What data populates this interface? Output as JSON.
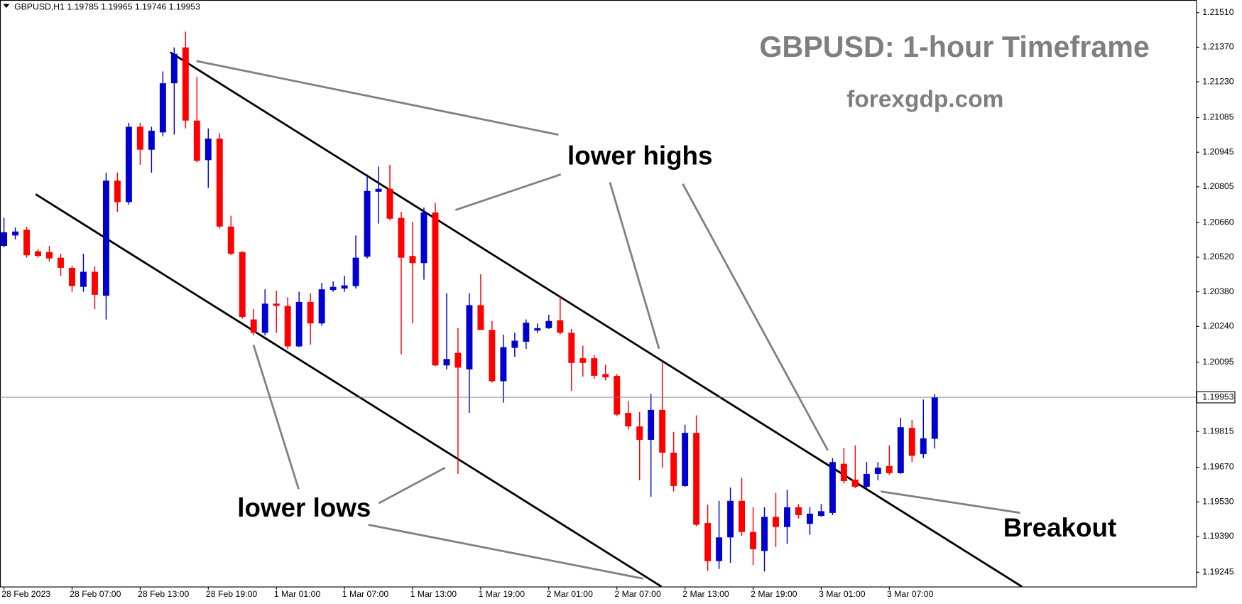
{
  "chart_data": {
    "type": "candlestick",
    "header": "GBPUSD,H1  1.19785 1.19965 1.19746 1.19953",
    "title": "GBPUSD: 1-hour Timeframe",
    "subtitle": "forexgdp.com",
    "annotations": [
      "lower highs",
      "lower lows",
      "Breakout"
    ],
    "up_color": "#0000d0",
    "down_color": "#ff0000",
    "last_price": 1.19953,
    "categories": [
      "28 Feb 2023",
      null,
      null,
      null,
      null,
      null,
      "28 Feb 07:00",
      null,
      null,
      null,
      null,
      null,
      "28 Feb 13:00",
      null,
      null,
      null,
      null,
      null,
      "28 Feb 19:00",
      null,
      null,
      null,
      null,
      null,
      "1 Mar 01:00",
      null,
      null,
      null,
      null,
      null,
      "1 Mar 07:00",
      null,
      null,
      null,
      null,
      null,
      "1 Mar 13:00",
      null,
      null,
      null,
      null,
      null,
      "1 Mar 19:00",
      null,
      null,
      null,
      null,
      null,
      "2 Mar 01:00",
      null,
      null,
      null,
      null,
      null,
      "2 Mar 07:00",
      null,
      null,
      null,
      null,
      null,
      "2 Mar 13:00",
      null,
      null,
      null,
      null,
      null,
      "2 Mar 19:00",
      null,
      null,
      null,
      null,
      null,
      "3 Mar 01:00",
      null,
      null,
      null,
      null,
      null,
      "3 Mar 07:00",
      null,
      null,
      null,
      null
    ],
    "open": [
      1.20566,
      1.20608,
      1.20631,
      1.20544,
      1.20541,
      1.20518,
      1.20477,
      1.204,
      1.20461,
      1.20364,
      1.2083,
      1.20743,
      1.21048,
      1.20955,
      1.21025,
      1.21224,
      1.21369,
      1.21073,
      1.20913,
      1.21,
      1.20644,
      1.20541,
      1.20268,
      1.20214,
      1.20332,
      1.20323,
      1.20159,
      1.20339,
      1.20252,
      1.20387,
      1.20393,
      1.20403,
      1.20522,
      1.20785,
      1.20797,
      1.20679,
      1.20525,
      1.20496,
      1.20701,
      1.20082,
      1.20133,
      1.20066,
      1.20326,
      1.20226,
      1.20018,
      1.20153,
      1.20178,
      1.20223,
      1.20233,
      1.20265,
      1.20214,
      1.20111,
      1.20111,
      1.20047,
      1.2004,
      1.1989,
      1.19835,
      1.19781,
      1.19902,
      1.19729,
      1.19594,
      1.19809,
      1.19444,
      1.1929,
      1.19386,
      1.19534,
      1.19408,
      1.19331,
      1.19469,
      1.19428,
      1.19508,
      1.19441,
      1.19473,
      1.19485,
      1.19684,
      1.1962,
      1.19591,
      1.19643,
      1.19675,
      1.19646,
      1.19829,
      1.19723,
      1.19785
    ],
    "high": [
      1.20679,
      1.2064,
      1.20643,
      1.20554,
      1.20566,
      1.20534,
      1.20486,
      1.20534,
      1.20483,
      1.20862,
      1.20862,
      1.21064,
      1.21064,
      1.21048,
      1.21272,
      1.21369,
      1.21433,
      1.2125,
      1.21041,
      1.21022,
      1.20688,
      1.20544,
      1.2031,
      1.2039,
      1.20384,
      1.20358,
      1.2038,
      1.20374,
      1.20416,
      1.20422,
      1.20445,
      1.20608,
      1.20855,
      1.20887,
      1.20894,
      1.20704,
      1.20663,
      1.20721,
      1.2074,
      1.20374,
      1.20233,
      1.20374,
      1.20451,
      1.20262,
      1.20207,
      1.20214,
      1.20268,
      1.20252,
      1.20287,
      1.20361,
      1.2023,
      1.20162,
      1.20124,
      1.20085,
      1.20047,
      1.19938,
      1.19893,
      1.19967,
      1.20101,
      1.19813,
      1.19842,
      1.1988,
      1.19518,
      1.19534,
      1.19588,
      1.19627,
      1.19508,
      1.19508,
      1.19566,
      1.19578,
      1.19521,
      1.19508,
      1.19521,
      1.19707,
      1.19748,
      1.19758,
      1.19691,
      1.19691,
      1.19758,
      1.1987,
      1.19861,
      1.19944,
      1.19965
    ],
    "low": [
      1.2056,
      1.20592,
      1.20518,
      1.20518,
      1.20502,
      1.20445,
      1.2038,
      1.2038,
      1.2031,
      1.20268,
      1.20704,
      1.20733,
      1.20894,
      1.20862,
      1.21009,
      1.21016,
      1.21041,
      1.20903,
      1.20801,
      1.20637,
      1.20528,
      1.20271,
      1.20204,
      1.20204,
      1.20214,
      1.20149,
      1.20156,
      1.20166,
      1.20243,
      1.2038,
      1.2038,
      1.20393,
      1.20515,
      1.20656,
      1.20669,
      1.20127,
      1.20252,
      1.20429,
      1.20079,
      1.20066,
      1.19643,
      1.1989,
      1.20226,
      1.20012,
      1.19931,
      1.20117,
      1.20149,
      1.20214,
      1.2023,
      1.20207,
      1.19979,
      1.20037,
      1.20028,
      1.20021,
      1.19877,
      1.19822,
      1.19617,
      1.1955,
      1.19668,
      1.19572,
      1.19591,
      1.19431,
      1.19251,
      1.19258,
      1.19283,
      1.19392,
      1.19274,
      1.19248,
      1.19347,
      1.1936,
      1.19463,
      1.19396,
      1.19469,
      1.19476,
      1.19604,
      1.19585,
      1.19585,
      1.19617,
      1.19639,
      1.19643,
      1.19691,
      1.19707,
      1.19746
    ],
    "close": [
      1.20621,
      1.20624,
      1.20528,
      1.20525,
      1.20515,
      1.20477,
      1.20403,
      1.20461,
      1.20368,
      1.2083,
      1.20743,
      1.21048,
      1.20955,
      1.21032,
      1.21224,
      1.21343,
      1.21073,
      1.2091,
      1.21,
      1.20644,
      1.20534,
      1.20278,
      1.20214,
      1.20332,
      1.20323,
      1.20159,
      1.20339,
      1.20252,
      1.2039,
      1.204,
      1.20406,
      1.20518,
      1.20788,
      1.20797,
      1.20676,
      1.20518,
      1.20496,
      1.20701,
      1.20082,
      1.20108,
      1.20073,
      1.20326,
      1.20226,
      1.20018,
      1.20156,
      1.20182,
      1.20255,
      1.20233,
      1.20262,
      1.20214,
      1.20092,
      1.20092,
      1.2004,
      1.20034,
      1.19883,
      1.19835,
      1.19781,
      1.19902,
      1.19729,
      1.19594,
      1.19809,
      1.19437,
      1.1929,
      1.19386,
      1.19534,
      1.19408,
      1.19338,
      1.19469,
      1.19428,
      1.19508,
      1.19476,
      1.19482,
      1.19492,
      1.19691,
      1.19614,
      1.19591,
      1.19643,
      1.19668,
      1.19646,
      1.19832,
      1.19716,
      1.19787,
      1.19953
    ],
    "ylim": [
      1.19187,
      1.21561
    ],
    "yticks": [
      {
        "value": 1.2151,
        "label": "1.21510"
      },
      {
        "value": 1.2137,
        "label": "1.21370"
      },
      {
        "value": 1.2123,
        "label": "1.21230"
      },
      1.21085,
      1.20945,
      1.20805,
      {
        "value": 1.2066,
        "label": "1.20660"
      },
      {
        "value": 1.2052,
        "label": "1.20520"
      },
      {
        "value": 1.2038,
        "label": "1.20380"
      },
      {
        "value": 1.2024,
        "label": "1.20240"
      },
      1.20095,
      1.19815,
      {
        "value": 1.1967,
        "label": "1.19670"
      },
      {
        "value": 1.1953,
        "label": "1.19530"
      },
      {
        "value": 1.1939,
        "label": "1.19390"
      },
      1.19245
    ]
  }
}
